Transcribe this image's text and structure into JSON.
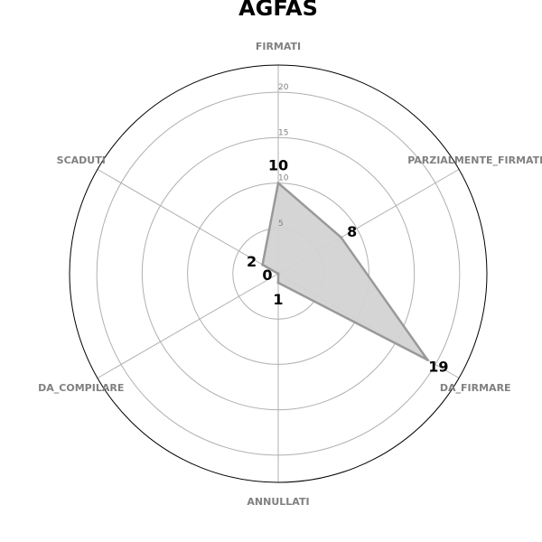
{
  "chart_data": {
    "type": "radar",
    "title": "AGFAS",
    "categories": [
      "FIRMATI",
      "PARZIALMENTE_FIRMATI",
      "DA_FIRMARE",
      "ANNULLATI",
      "DA_COMPILARE",
      "SCADUTI"
    ],
    "values": [
      10,
      8,
      19,
      1,
      0,
      2
    ],
    "value_labels": [
      "10",
      "8",
      "19",
      "1",
      "0",
      "2"
    ],
    "rticks": [
      5,
      10,
      15,
      20
    ],
    "rtick_labels": [
      "5",
      "10",
      "15",
      "20"
    ],
    "rlim": [
      0,
      23
    ],
    "grid": true,
    "colors": {
      "fill": "#d3d3d3",
      "line": "#999999",
      "grid": "#b0b0b0",
      "outer_frame": "#000000",
      "category_text": "#808080"
    }
  }
}
